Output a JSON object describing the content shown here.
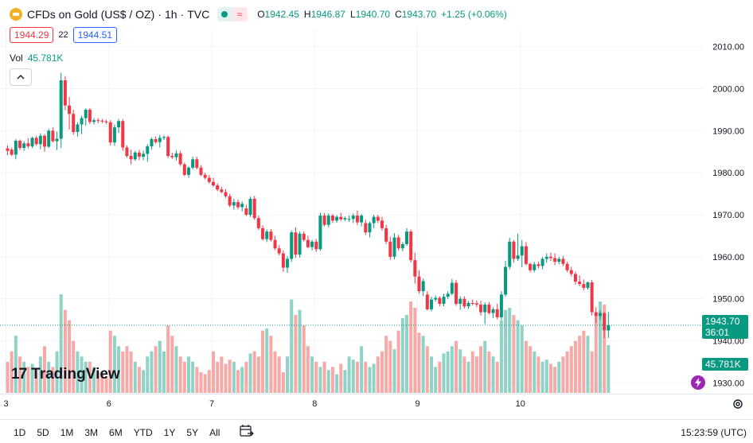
{
  "header": {
    "symbol": "CFDs on Gold (US$ / OZ)",
    "interval": "1h",
    "source": "TVC",
    "separator": "·",
    "wave_icon_glyph": "≈",
    "ohlc": [
      {
        "key": "O",
        "value": "1942.45"
      },
      {
        "key": "H",
        "value": "1946.87"
      },
      {
        "key": "L",
        "value": "1940.70"
      },
      {
        "key": "C",
        "value": "1943.70"
      },
      {
        "key": "",
        "value": "+1.25 (+0.06%)"
      }
    ]
  },
  "quote": {
    "bid": "1944.29",
    "spread": "22",
    "ask": "1944.51"
  },
  "volume_legend": {
    "label": "Vol",
    "value": "45.781K"
  },
  "last_price": {
    "price": "1943.70",
    "countdown": "36:01"
  },
  "volume_scale_label": "45.781K",
  "logo_text": "TradingView",
  "logo_mark": "17",
  "bottom": {
    "ranges": [
      "1D",
      "5D",
      "1M",
      "3M",
      "6M",
      "YTD",
      "1Y",
      "5Y",
      "All"
    ],
    "clock": "15:23:59 (UTC)"
  },
  "colors": {
    "up": "#089981",
    "down": "#f23645",
    "vol_up": "#8fd2c6",
    "vol_down": "#f7a9a7",
    "grid": "#f0f3fa"
  },
  "icons": [
    "gold-coin-icon",
    "market-open-icon",
    "wave-icon",
    "chevron-up-icon",
    "goto-date-icon",
    "gear-icon",
    "lightning-icon"
  ],
  "chart_data": {
    "type": "candlestick",
    "title": "CFDs on Gold (US$ / OZ) · 1h · TVC",
    "ylim": [
      1925.7,
      2014.3
    ],
    "y_ticks": [
      "2010.00",
      "2000.00",
      "1990.00",
      "1980.00",
      "1970.00",
      "1960.00",
      "1950.00",
      "1940.00",
      "1930.00"
    ],
    "x_ticks": [
      {
        "label": "3",
        "index": 0
      },
      {
        "label": "6",
        "index": 25
      },
      {
        "label": "7",
        "index": 50
      },
      {
        "label": "8",
        "index": 75
      },
      {
        "label": "9",
        "index": 100
      },
      {
        "label": "10",
        "index": 125
      }
    ],
    "bars": [
      [
        1985.8,
        1986.5,
        1984.2,
        1985.2,
        30
      ],
      [
        1985.5,
        1986.0,
        1984.0,
        1984.3,
        40
      ],
      [
        1984.3,
        1988.0,
        1983.2,
        1987.6,
        55
      ],
      [
        1987.6,
        1987.9,
        1985.4,
        1985.9,
        35
      ],
      [
        1985.9,
        1987.5,
        1985.2,
        1987.0,
        30
      ],
      [
        1987.0,
        1988.2,
        1985.8,
        1986.3,
        25
      ],
      [
        1986.3,
        1988.6,
        1985.9,
        1988.3,
        28
      ],
      [
        1988.3,
        1988.8,
        1986.4,
        1986.8,
        22
      ],
      [
        1986.8,
        1989.4,
        1985.6,
        1988.8,
        35
      ],
      [
        1988.8,
        1989.2,
        1985.0,
        1986.2,
        45
      ],
      [
        1986.2,
        1990.5,
        1985.9,
        1990.0,
        30
      ],
      [
        1990.0,
        1990.8,
        1987.2,
        1987.5,
        25
      ],
      [
        1987.5,
        1989.8,
        1985.4,
        1988.1,
        40
      ],
      [
        1988.1,
        2003.8,
        1985.9,
        2002.0,
        95
      ],
      [
        2002.0,
        2003.0,
        1994.9,
        1996.0,
        80
      ],
      [
        1996.0,
        1998.0,
        1990.3,
        1994.0,
        70
      ],
      [
        1994.0,
        1995.0,
        1989.0,
        1989.7,
        50
      ],
      [
        1989.7,
        1992.0,
        1988.6,
        1991.5,
        40
      ],
      [
        1991.5,
        1993.6,
        1989.2,
        1993.0,
        35
      ],
      [
        1993.0,
        1995.3,
        1991.2,
        1995.0,
        30
      ],
      [
        1995.0,
        1995.4,
        1991.6,
        1992.1,
        30
      ],
      [
        1992.1,
        1993.0,
        1991.5,
        1992.5,
        25
      ],
      [
        1992.5,
        1993.0,
        1991.8,
        1992.4,
        20
      ],
      [
        1992.4,
        1992.8,
        1991.8,
        1992.2,
        18
      ],
      [
        1992.2,
        1992.6,
        1991.6,
        1992.0,
        15
      ],
      [
        1992.0,
        1992.5,
        1986.5,
        1987.2,
        60
      ],
      [
        1987.2,
        1991.5,
        1986.4,
        1990.8,
        55
      ],
      [
        1990.8,
        1992.8,
        1989.5,
        1992.3,
        45
      ],
      [
        1992.3,
        1992.8,
        1985.2,
        1986.0,
        40
      ],
      [
        1986.0,
        1986.5,
        1983.6,
        1984.0,
        45
      ],
      [
        1984.0,
        1985.5,
        1982.0,
        1983.2,
        40
      ],
      [
        1983.2,
        1985.2,
        1982.8,
        1984.8,
        30
      ],
      [
        1984.8,
        1985.5,
        1983.0,
        1983.8,
        25
      ],
      [
        1983.8,
        1985.3,
        1983.0,
        1984.5,
        22
      ],
      [
        1984.5,
        1986.8,
        1982.6,
        1986.3,
        35
      ],
      [
        1986.3,
        1988.4,
        1985.5,
        1988.0,
        40
      ],
      [
        1988.0,
        1988.6,
        1986.9,
        1987.3,
        45
      ],
      [
        1987.3,
        1989.0,
        1986.0,
        1988.3,
        50
      ],
      [
        1988.3,
        1988.9,
        1987.8,
        1988.5,
        40
      ],
      [
        1988.5,
        1988.9,
        1983.5,
        1984.0,
        65
      ],
      [
        1984.0,
        1984.8,
        1983.3,
        1983.7,
        55
      ],
      [
        1983.7,
        1985.3,
        1982.9,
        1984.6,
        45
      ],
      [
        1984.6,
        1985.2,
        1981.6,
        1982.0,
        35
      ],
      [
        1982.0,
        1982.4,
        1979.2,
        1979.5,
        30
      ],
      [
        1979.5,
        1981.6,
        1978.8,
        1981.2,
        35
      ],
      [
        1981.2,
        1983.8,
        1980.8,
        1983.2,
        30
      ],
      [
        1983.2,
        1983.8,
        1980.8,
        1981.2,
        25
      ],
      [
        1981.2,
        1981.8,
        1979.2,
        1979.5,
        20
      ],
      [
        1979.5,
        1980.0,
        1978.4,
        1978.8,
        18
      ],
      [
        1978.8,
        1979.5,
        1977.4,
        1977.8,
        22
      ],
      [
        1977.8,
        1978.8,
        1976.6,
        1977.0,
        40
      ],
      [
        1977.0,
        1977.5,
        1975.6,
        1976.0,
        30
      ],
      [
        1976.0,
        1976.6,
        1975.1,
        1975.4,
        35
      ],
      [
        1975.4,
        1976.1,
        1974.0,
        1974.4,
        28
      ],
      [
        1974.4,
        1975.0,
        1971.8,
        1972.2,
        32
      ],
      [
        1972.2,
        1973.8,
        1971.2,
        1973.0,
        30
      ],
      [
        1973.0,
        1973.6,
        1971.3,
        1971.8,
        22
      ],
      [
        1971.8,
        1973.2,
        1970.8,
        1972.6,
        25
      ],
      [
        1971.5,
        1972.4,
        1969.7,
        1970.0,
        30
      ],
      [
        1970.0,
        1974.3,
        1969.5,
        1973.8,
        38
      ],
      [
        1973.8,
        1974.5,
        1968.8,
        1969.2,
        40
      ],
      [
        1969.2,
        1969.8,
        1966.4,
        1966.8,
        35
      ],
      [
        1966.8,
        1967.5,
        1963.8,
        1964.2,
        60
      ],
      [
        1964.2,
        1966.5,
        1963.5,
        1966.0,
        62
      ],
      [
        1966.0,
        1966.6,
        1963.6,
        1964.0,
        55
      ],
      [
        1964.0,
        1965.0,
        1961.6,
        1962.0,
        40
      ],
      [
        1962.0,
        1962.8,
        1960.3,
        1960.8,
        35
      ],
      [
        1960.8,
        1961.5,
        1956.4,
        1957.4,
        20
      ],
      [
        1957.4,
        1960.2,
        1956.2,
        1959.5,
        35
      ],
      [
        1959.5,
        1966.3,
        1958.8,
        1965.8,
        90
      ],
      [
        1965.8,
        1967.0,
        1959.7,
        1960.5,
        75
      ],
      [
        1960.5,
        1966.0,
        1959.8,
        1965.5,
        80
      ],
      [
        1965.5,
        1966.0,
        1963.6,
        1964.0,
        65
      ],
      [
        1964.0,
        1965.0,
        1962.0,
        1962.3,
        45
      ],
      [
        1962.3,
        1964.0,
        1961.5,
        1963.6,
        35
      ],
      [
        1963.6,
        1964.2,
        1961.2,
        1961.8,
        30
      ],
      [
        1961.8,
        1970.5,
        1961.4,
        1969.8,
        25
      ],
      [
        1969.8,
        1970.4,
        1967.2,
        1967.6,
        30
      ],
      [
        1967.6,
        1970.3,
        1967.0,
        1969.8,
        22
      ],
      [
        1969.8,
        1970.2,
        1968.0,
        1968.6,
        25
      ],
      [
        1968.6,
        1969.9,
        1968.1,
        1969.5,
        18
      ],
      [
        1969.5,
        1970.5,
        1968.5,
        1968.9,
        28
      ],
      [
        1968.9,
        1969.6,
        1968.5,
        1969.2,
        22
      ],
      [
        1968.9,
        1969.8,
        1968.3,
        1969.0,
        35
      ],
      [
        1969.0,
        1970.3,
        1968.0,
        1969.8,
        32
      ],
      [
        1969.8,
        1971.0,
        1967.5,
        1968.2,
        30
      ],
      [
        1968.2,
        1970.2,
        1967.2,
        1969.8,
        45
      ],
      [
        1968.0,
        1968.8,
        1965.2,
        1965.8,
        30
      ],
      [
        1965.8,
        1968.4,
        1964.6,
        1968.0,
        25
      ],
      [
        1968.0,
        1970.0,
        1966.8,
        1969.5,
        28
      ],
      [
        1969.5,
        1970.0,
        1968.0,
        1968.6,
        35
      ],
      [
        1968.6,
        1969.5,
        1966.2,
        1966.8,
        40
      ],
      [
        1966.8,
        1967.6,
        1963.0,
        1963.6,
        55
      ],
      [
        1963.6,
        1964.8,
        1959.3,
        1960.0,
        50
      ],
      [
        1960.0,
        1965.6,
        1959.4,
        1964.6,
        42
      ],
      [
        1964.6,
        1965.2,
        1961.5,
        1962.0,
        60
      ],
      [
        1962.0,
        1963.5,
        1961.3,
        1963.0,
        72
      ],
      [
        1963.0,
        1966.8,
        1962.6,
        1966.0,
        75
      ],
      [
        1966.0,
        1966.5,
        1958.6,
        1959.2,
        88
      ],
      [
        1959.2,
        1961.0,
        1953.6,
        1955.3,
        82
      ],
      [
        1955.3,
        1956.8,
        1951.2,
        1951.8,
        58
      ],
      [
        1951.8,
        1954.8,
        1950.6,
        1954.2,
        55
      ],
      [
        1951.0,
        1951.8,
        1947.2,
        1947.5,
        45
      ],
      [
        1947.5,
        1950.5,
        1947.0,
        1949.8,
        35
      ],
      [
        1949.8,
        1950.8,
        1949.3,
        1950.2,
        25
      ],
      [
        1950.2,
        1950.6,
        1948.2,
        1948.8,
        30
      ],
      [
        1948.8,
        1951.2,
        1948.2,
        1950.5,
        38
      ],
      [
        1950.5,
        1951.8,
        1949.9,
        1951.2,
        40
      ],
      [
        1951.2,
        1954.7,
        1950.8,
        1953.8,
        45
      ],
      [
        1953.8,
        1954.5,
        1948.3,
        1948.8,
        50
      ],
      [
        1948.8,
        1950.6,
        1947.4,
        1950.0,
        42
      ],
      [
        1950.0,
        1950.6,
        1947.7,
        1948.2,
        35
      ],
      [
        1948.2,
        1949.5,
        1947.6,
        1949.0,
        30
      ],
      [
        1949.0,
        1949.8,
        1948.4,
        1948.9,
        40
      ],
      [
        1948.9,
        1949.6,
        1948.0,
        1948.6,
        35
      ],
      [
        1948.6,
        1949.5,
        1946.0,
        1946.8,
        45
      ],
      [
        1946.8,
        1949.1,
        1944.0,
        1948.6,
        50
      ],
      [
        1948.6,
        1949.2,
        1946.2,
        1946.6,
        40
      ],
      [
        1946.6,
        1948.0,
        1945.4,
        1947.5,
        35
      ],
      [
        1947.5,
        1948.8,
        1945.1,
        1945.6,
        30
      ],
      [
        1945.6,
        1951.8,
        1945.0,
        1951.0,
        70
      ],
      [
        1951.0,
        1959.0,
        1950.5,
        1957.6,
        80
      ],
      [
        1957.6,
        1964.5,
        1957.0,
        1963.6,
        82
      ],
      [
        1963.6,
        1964.0,
        1958.6,
        1959.5,
        75
      ],
      [
        1959.5,
        1965.5,
        1959.0,
        1960.3,
        70
      ],
      [
        1960.3,
        1964.0,
        1957.5,
        1962.5,
        65
      ],
      [
        1962.5,
        1963.5,
        1957.9,
        1958.3,
        50
      ],
      [
        1958.3,
        1958.6,
        1956.3,
        1956.8,
        45
      ],
      [
        1956.8,
        1958.8,
        1956.3,
        1958.2,
        40
      ],
      [
        1958.2,
        1958.8,
        1957.2,
        1957.8,
        35
      ],
      [
        1957.8,
        1960.0,
        1957.0,
        1959.5,
        30
      ],
      [
        1959.5,
        1960.8,
        1958.6,
        1960.0,
        32
      ],
      [
        1960.0,
        1961.0,
        1959.0,
        1959.7,
        28
      ],
      [
        1959.7,
        1960.8,
        1958.0,
        1958.8,
        25
      ],
      [
        1958.8,
        1960.0,
        1958.2,
        1959.5,
        30
      ],
      [
        1959.5,
        1960.2,
        1957.8,
        1958.3,
        35
      ],
      [
        1958.3,
        1958.8,
        1956.3,
        1956.8,
        40
      ],
      [
        1956.8,
        1957.6,
        1955.3,
        1955.9,
        45
      ],
      [
        1955.9,
        1956.5,
        1953.4,
        1954.1,
        50
      ],
      [
        1954.1,
        1955.6,
        1953.0,
        1953.5,
        55
      ],
      [
        1953.5,
        1954.6,
        1952.0,
        1952.6,
        60
      ],
      [
        1952.6,
        1954.1,
        1952.2,
        1953.9,
        55
      ],
      [
        1953.9,
        1954.5,
        1946.0,
        1946.8,
        40
      ],
      [
        1946.8,
        1948.0,
        1944.2,
        1945.9,
        75
      ],
      [
        1945.9,
        1947.2,
        1945.0,
        1946.6,
        88
      ],
      [
        1946.6,
        1946.8,
        1940.7,
        1942.5,
        85
      ],
      [
        1942.45,
        1946.87,
        1940.7,
        1943.7,
        46
      ]
    ]
  }
}
